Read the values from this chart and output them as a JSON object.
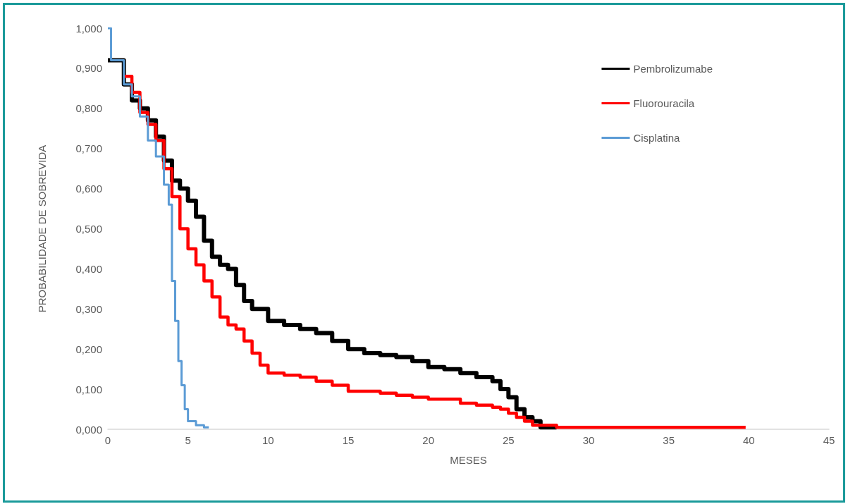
{
  "chart_data": {
    "type": "step",
    "xlabel": "MESES",
    "ylabel": "PROBABILIDADE DE SOBREVIDA",
    "xlim": [
      0,
      45
    ],
    "xticks": [
      0,
      5,
      10,
      15,
      20,
      25,
      30,
      35,
      40,
      45
    ],
    "ylim": [
      0,
      1
    ],
    "yticks": [
      {
        "value": 0,
        "label": "0,000"
      },
      {
        "value": 0.1,
        "label": "0,100"
      },
      {
        "value": 0.2,
        "label": "0,200"
      },
      {
        "value": 0.3,
        "label": "0,300"
      },
      {
        "value": 0.4,
        "label": "0,400"
      },
      {
        "value": 0.5,
        "label": "0,500"
      },
      {
        "value": 0.6,
        "label": "0,600"
      },
      {
        "value": 0.7,
        "label": "0,700"
      },
      {
        "value": 0.8,
        "label": "0,800"
      },
      {
        "value": 0.9,
        "label": "0,900"
      },
      {
        "value": 1,
        "label": "1,000"
      }
    ],
    "grid": false,
    "legend": "top right",
    "marker": "none",
    "line_style": "solid",
    "series": [
      {
        "name": "Pembrolizumabe",
        "color": "#000000",
        "x": [
          0,
          1,
          1.5,
          2,
          2.5,
          3,
          3.5,
          4,
          4.5,
          5,
          5.5,
          6,
          6.5,
          7,
          7.5,
          8,
          8.5,
          9,
          10,
          11,
          12,
          13,
          14,
          15,
          16,
          17,
          18,
          19,
          20,
          21,
          22,
          23,
          24,
          24.5,
          25,
          25.5,
          26,
          26.5,
          27,
          28
        ],
        "values": [
          0.92,
          0.86,
          0.82,
          0.8,
          0.77,
          0.73,
          0.67,
          0.62,
          0.6,
          0.57,
          0.53,
          0.47,
          0.43,
          0.41,
          0.4,
          0.36,
          0.32,
          0.3,
          0.27,
          0.26,
          0.25,
          0.24,
          0.22,
          0.2,
          0.19,
          0.185,
          0.18,
          0.17,
          0.155,
          0.15,
          0.14,
          0.13,
          0.12,
          0.1,
          0.08,
          0.05,
          0.03,
          0.02,
          0.005,
          0.005
        ]
      },
      {
        "name": "Fluorouracila",
        "color": "#ff0000",
        "x": [
          1,
          1.5,
          2,
          2.5,
          3,
          3.5,
          4,
          4.5,
          5,
          5.5,
          6,
          6.5,
          7,
          7.5,
          8,
          8.5,
          9,
          9.5,
          10,
          11,
          12,
          13,
          14,
          15,
          17,
          18,
          19,
          20,
          22,
          23,
          24,
          24.5,
          25,
          25.5,
          26,
          26.5,
          28,
          39.8
        ],
        "values": [
          0.88,
          0.84,
          0.79,
          0.76,
          0.72,
          0.65,
          0.58,
          0.5,
          0.45,
          0.41,
          0.37,
          0.33,
          0.28,
          0.26,
          0.25,
          0.22,
          0.19,
          0.16,
          0.14,
          0.135,
          0.13,
          0.12,
          0.11,
          0.095,
          0.09,
          0.085,
          0.08,
          0.075,
          0.065,
          0.06,
          0.055,
          0.05,
          0.04,
          0.03,
          0.02,
          0.01,
          0.005,
          0.005
        ]
      },
      {
        "name": "Cisplatina",
        "color": "#5b9bd5",
        "x": [
          0,
          0.2,
          1,
          1.5,
          2,
          2.5,
          3,
          3.5,
          3.8,
          4,
          4.2,
          4.4,
          4.6,
          4.8,
          5,
          5.5,
          6,
          6.3
        ],
        "values": [
          1,
          0.92,
          0.86,
          0.83,
          0.78,
          0.72,
          0.68,
          0.61,
          0.56,
          0.37,
          0.27,
          0.17,
          0.11,
          0.05,
          0.02,
          0.01,
          0.005,
          0.005
        ]
      }
    ]
  }
}
